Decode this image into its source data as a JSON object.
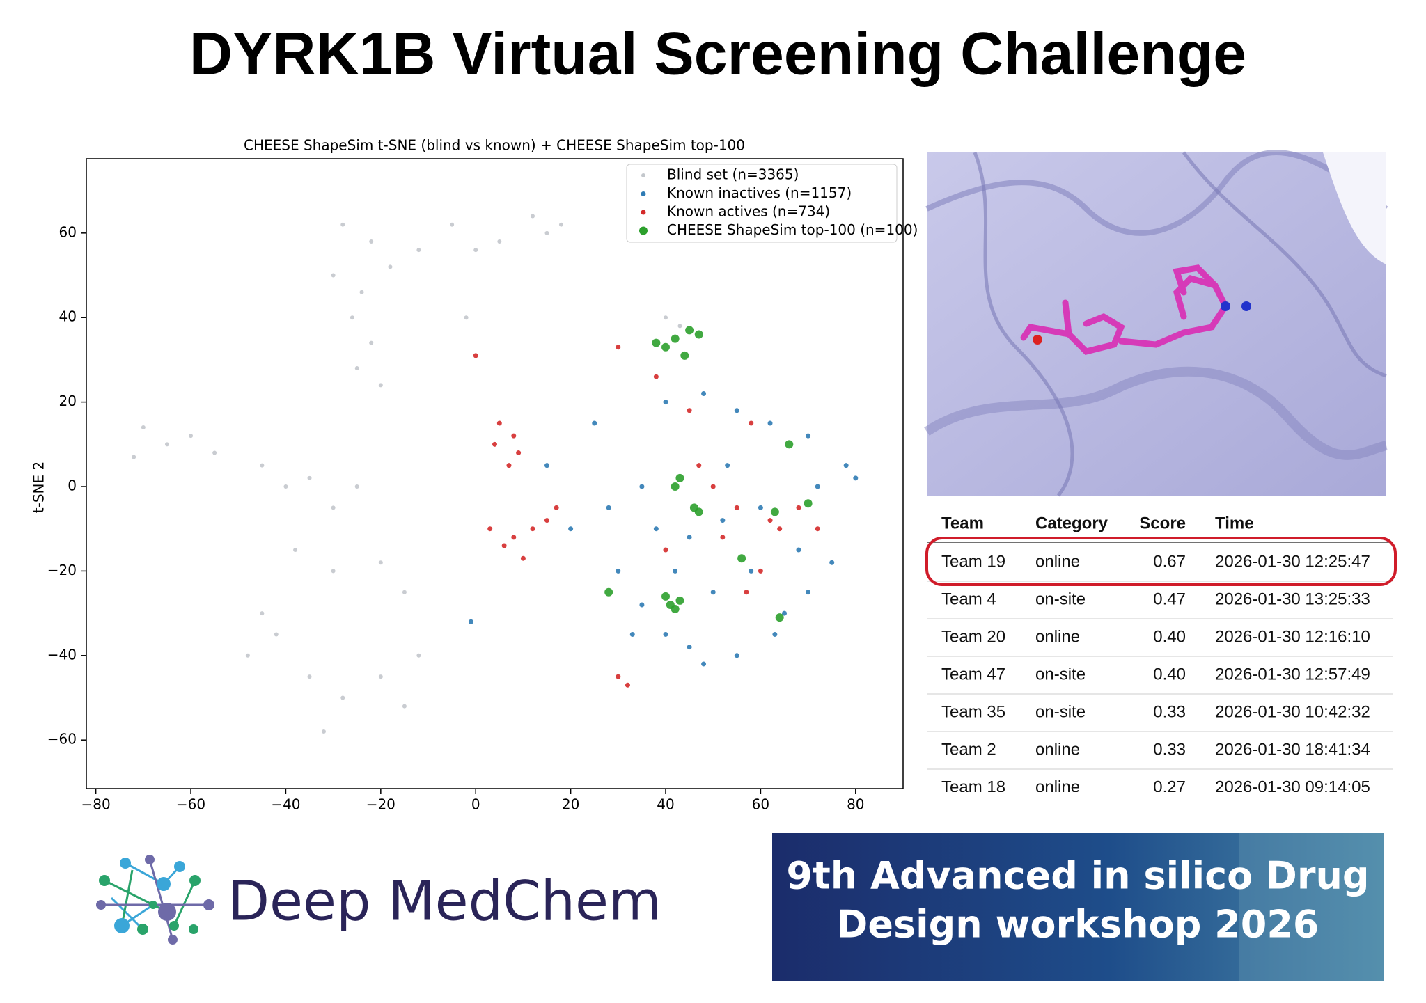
{
  "header": {
    "title": "DYRK1B Virtual Screening Challenge"
  },
  "chart_data": {
    "type": "scatter",
    "title": "CHEESE ShapeSim t-SNE (blind vs known) + CHEESE ShapeSim top-100",
    "ylabel": "t-SNE 2",
    "xlim": [
      -82,
      90
    ],
    "ylim": [
      -71.5,
      77.6
    ],
    "xticks": [
      {
        "value": -80,
        "label": "−80"
      },
      {
        "value": -60,
        "label": "−60"
      },
      {
        "value": -40,
        "label": "−40"
      },
      {
        "value": -20,
        "label": "−20"
      },
      0,
      20,
      40,
      60,
      80
    ],
    "yticks": [
      {
        "value": -60,
        "label": "−60"
      },
      {
        "value": -40,
        "label": "−40"
      },
      {
        "value": -20,
        "label": "−20"
      },
      0,
      20,
      40,
      60
    ],
    "legend": "upper right",
    "series": [
      {
        "name": "Blind set (n=3365)",
        "color": "#c3c7cc",
        "marker_size": 3,
        "x": [
          -28,
          -22,
          -30,
          -24,
          -18,
          -26,
          -22,
          -25,
          -20,
          -12,
          -5,
          5,
          12,
          15,
          18,
          0,
          -2,
          -70,
          -65,
          -72,
          -60,
          -55,
          -45,
          -40,
          -35,
          -30,
          -25,
          -38,
          -30,
          -20,
          -15,
          -42,
          -35,
          -28,
          -32,
          -20,
          -12,
          -15,
          -45,
          40,
          43,
          -48
        ],
        "y": [
          62,
          58,
          50,
          46,
          52,
          40,
          34,
          28,
          24,
          56,
          62,
          58,
          64,
          60,
          62,
          56,
          40,
          14,
          10,
          7,
          12,
          8,
          5,
          0,
          2,
          -5,
          0,
          -15,
          -20,
          -18,
          -25,
          -35,
          -45,
          -50,
          -58,
          -45,
          -40,
          -52,
          -30,
          40,
          38,
          -40
        ]
      },
      {
        "name": "Known inactives (n=1157)",
        "color": "#2f7bb4",
        "marker_size": 3.5,
        "x": [
          40,
          48,
          55,
          62,
          70,
          78,
          80,
          72,
          60,
          52,
          45,
          38,
          35,
          28,
          30,
          35,
          40,
          45,
          48,
          55,
          63,
          65,
          70,
          58,
          50,
          42,
          33,
          15,
          20,
          -1,
          25,
          68,
          75,
          53
        ],
        "y": [
          20,
          22,
          18,
          15,
          12,
          5,
          2,
          0,
          -5,
          -8,
          -12,
          -10,
          0,
          -5,
          -20,
          -28,
          -35,
          -38,
          -42,
          -40,
          -35,
          -30,
          -25,
          -20,
          -25,
          -20,
          -35,
          5,
          -10,
          -32,
          15,
          -15,
          -18,
          5
        ]
      },
      {
        "name": "Known actives (n=734)",
        "color": "#d42a2a",
        "marker_size": 3.5,
        "x": [
          5,
          8,
          4,
          7,
          9,
          3,
          6,
          8,
          10,
          12,
          17,
          15,
          30,
          38,
          47,
          50,
          55,
          52,
          62,
          64,
          60,
          72,
          30,
          32,
          0,
          45,
          58,
          68,
          40,
          57
        ],
        "y": [
          15,
          12,
          10,
          5,
          8,
          -10,
          -14,
          -12,
          -17,
          -10,
          -5,
          -8,
          33,
          26,
          5,
          0,
          -5,
          -12,
          -8,
          -10,
          -20,
          -10,
          -45,
          -47,
          31,
          18,
          15,
          -5,
          -15,
          -25
        ]
      },
      {
        "name": "CHEESE ShapeSim top-100 (n=100)",
        "color": "#2ca02c",
        "marker_size": 6,
        "x": [
          40,
          42,
          44,
          45,
          47,
          38,
          43,
          40,
          41,
          42,
          47,
          46,
          42,
          43,
          66,
          56,
          64,
          28,
          70,
          63
        ],
        "y": [
          33,
          35,
          31,
          37,
          36,
          34,
          -27,
          -26,
          -28,
          -29,
          -6,
          -5,
          0,
          2,
          10,
          -17,
          -31,
          -25,
          -4,
          -6
        ]
      }
    ]
  },
  "table": {
    "columns": [
      "Team",
      "Category",
      "Score",
      "Time"
    ],
    "rows": [
      [
        "Team 19",
        "online",
        "0.67",
        "2026-01-30 12:25:47"
      ],
      [
        "Team 4",
        "on-site",
        "0.47",
        "2026-01-30 13:25:33"
      ],
      [
        "Team 20",
        "online",
        "0.40",
        "2026-01-30 12:16:10"
      ],
      [
        "Team 47",
        "on-site",
        "0.40",
        "2026-01-30 12:57:49"
      ],
      [
        "Team 35",
        "on-site",
        "0.33",
        "2026-01-30 10:42:32"
      ],
      [
        "Team 2",
        "online",
        "0.33",
        "2026-01-30 18:41:34"
      ],
      [
        "Team 18",
        "online",
        "0.27",
        "2026-01-30 09:14:05"
      ]
    ]
  },
  "logo": {
    "text": "Deep MedChem"
  },
  "banner": {
    "lines": [
      "9th Advanced in silico Drug",
      "Design workshop 2026"
    ]
  }
}
